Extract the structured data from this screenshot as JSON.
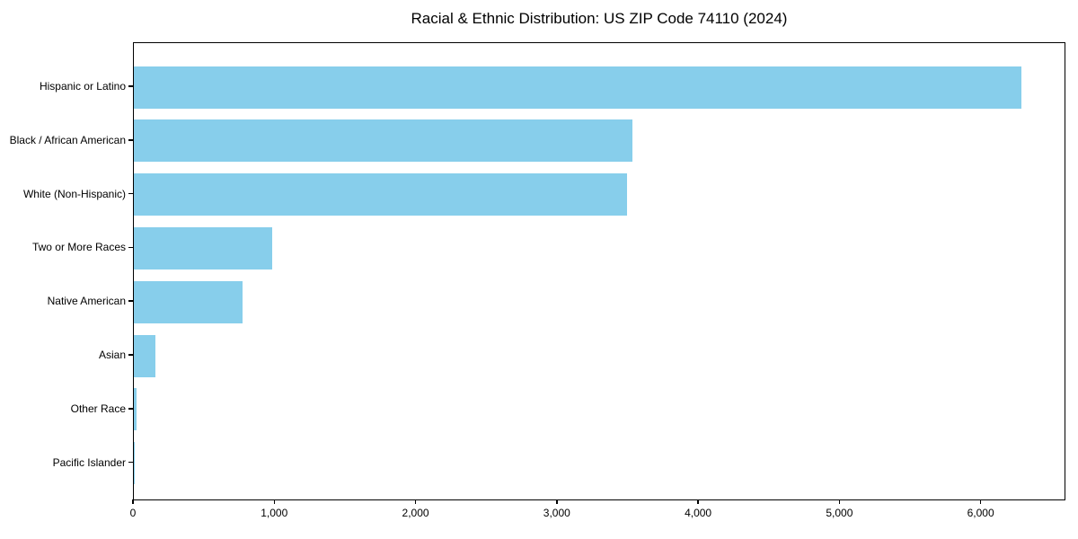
{
  "page": {
    "background": "#ffffff"
  },
  "chart_data": {
    "type": "bar",
    "orientation": "horizontal",
    "title": "Racial & Ethnic Distribution: US ZIP Code 74110 (2024)",
    "categories": [
      "Hispanic or Latino",
      "Black / African American",
      "White (Non-Hispanic)",
      "Two or More Races",
      "Native American",
      "Asian",
      "Other Race",
      "Pacific Islander"
    ],
    "values": [
      6280,
      3530,
      3490,
      980,
      770,
      150,
      20,
      5
    ],
    "xlabel": "",
    "ylabel": "",
    "xlim": [
      0,
      6600
    ],
    "x_ticks": [
      0,
      1000,
      2000,
      3000,
      4000,
      5000,
      6000
    ],
    "x_tick_labels": [
      "0",
      "1,000",
      "2,000",
      "3,000",
      "4,000",
      "5,000",
      "6,000"
    ],
    "bar_color": "#87CEEB",
    "axis_color": "#000000",
    "grid": false,
    "legend": null
  }
}
